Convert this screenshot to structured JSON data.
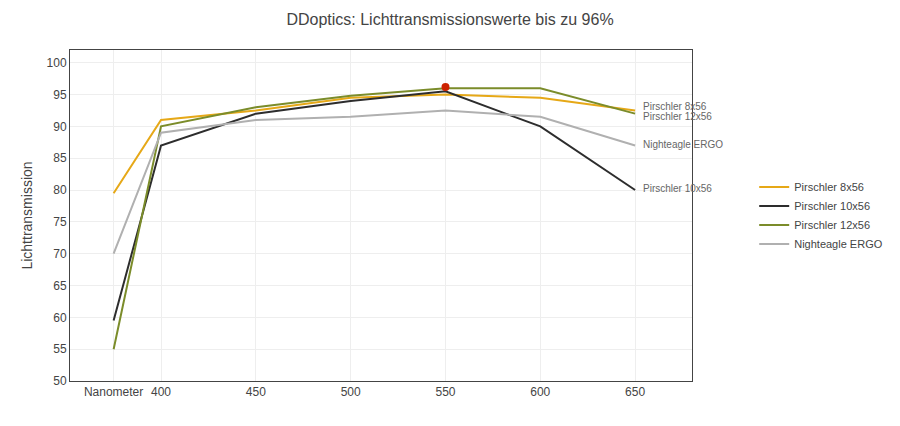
{
  "chart_data": {
    "type": "line",
    "title": "DDoptics: Lichttransmissionswerte bis zu 96%",
    "y_label": "Lichttransmission",
    "x": [
      375,
      400,
      450,
      500,
      550,
      600,
      650
    ],
    "series": [
      {
        "name": "Pirschler 8x56",
        "color": "#e6a817",
        "values": [
          79.5,
          91.0,
          92.5,
          94.5,
          95.0,
          94.5,
          92.5
        ]
      },
      {
        "name": "Pirschler 10x56",
        "color": "#2d2d2d",
        "values": [
          59.5,
          87.0,
          92.0,
          94.0,
          95.5,
          90.0,
          80.0
        ]
      },
      {
        "name": "Pirschler 12x56",
        "color": "#7b8c2a",
        "values": [
          55.0,
          90.0,
          93.0,
          94.8,
          96.0,
          96.0,
          92.0
        ]
      },
      {
        "name": "Nighteagle ERGO",
        "color": "#b0b0b0",
        "values": [
          70.0,
          89.0,
          91.0,
          91.5,
          92.5,
          91.5,
          87.0
        ]
      }
    ],
    "xlim": [
      352,
      680
    ],
    "xticks": [
      {
        "value": 375,
        "label": "Nanometer"
      },
      400,
      450,
      500,
      550,
      600,
      650
    ],
    "ylim": [
      50,
      102
    ],
    "yticks": [
      50,
      55,
      60,
      65,
      70,
      75,
      80,
      85,
      90,
      95,
      100
    ],
    "grid": true,
    "legend": "right",
    "annotations": [
      {
        "x": 550,
        "y": 96.2,
        "color": "#cc2200",
        "marker": "circle"
      },
      {
        "text": "Pirschler 8x56",
        "x": 653,
        "y": 93.2,
        "color": "#666666"
      },
      {
        "text": "Pirschler 12x56",
        "x": 653,
        "y": 91.6,
        "color": "#666666"
      },
      {
        "text": "Nighteagle ERGO",
        "x": 653,
        "y": 87.2,
        "color": "#666666"
      },
      {
        "text": "Pirschler 10x56",
        "x": 653,
        "y": 80.2,
        "color": "#666666"
      }
    ]
  }
}
